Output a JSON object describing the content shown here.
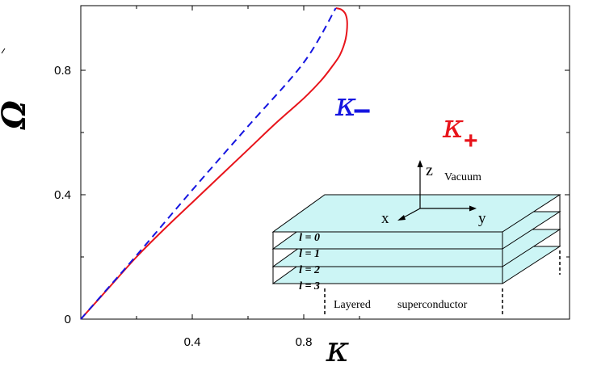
{
  "chart_data": {
    "type": "line",
    "xlabel": "κ",
    "ylabel": "Ω",
    "xlim": [
      0,
      1.05
    ],
    "ylim": [
      0,
      1.0
    ],
    "x_ticks": [
      0.4,
      0.8
    ],
    "y_ticks": [
      0,
      0.4,
      0.8
    ],
    "x_tick_labels": [
      "0.4",
      "0.8"
    ],
    "y_tick_labels": [
      "0",
      "0.4",
      "0.8"
    ],
    "grid": false,
    "series": [
      {
        "name": "κ+",
        "label_base": "κ",
        "label_sub": "+",
        "color": "#e8141b",
        "style": "solid",
        "points": [
          [
            0,
            0
          ],
          [
            0.1,
            0.1
          ],
          [
            0.2,
            0.2
          ],
          [
            0.3,
            0.29
          ],
          [
            0.4,
            0.375
          ],
          [
            0.5,
            0.46
          ],
          [
            0.6,
            0.545
          ],
          [
            0.7,
            0.63
          ],
          [
            0.8,
            0.71
          ],
          [
            0.86,
            0.765
          ],
          [
            0.9,
            0.81
          ],
          [
            0.93,
            0.85
          ],
          [
            0.95,
            0.9
          ],
          [
            0.956,
            0.95
          ],
          [
            0.95,
            0.98
          ],
          [
            0.935,
            0.995
          ],
          [
            0.915,
            1.0
          ]
        ]
      },
      {
        "name": "κ−",
        "label_base": "κ",
        "label_sub": "−",
        "color": "#1515e0",
        "style": "dashed",
        "points": [
          [
            0,
            0
          ],
          [
            0.2,
            0.205
          ],
          [
            0.4,
            0.415
          ],
          [
            0.6,
            0.62
          ],
          [
            0.8,
            0.825
          ],
          [
            0.915,
            1.0
          ]
        ]
      }
    ]
  },
  "inset": {
    "axis_z": "z",
    "axis_x": "x",
    "axis_y": "y",
    "vacuum_label": "Vacuum",
    "layer_labels": [
      "l = 0",
      "l = 1",
      "l = 2",
      "l = 3"
    ],
    "bottom_label_1": "Layered",
    "bottom_label_2": "superconductor",
    "layer_color": "#ccf5f5"
  }
}
